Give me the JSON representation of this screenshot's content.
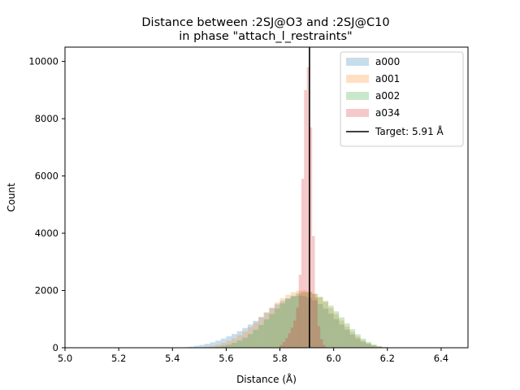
{
  "chart_data": {
    "type": "bar",
    "title": "Distance between :2SJ@O3 and :2SJ@C10",
    "subtitle": "in phase \"attach_l_restraints\"",
    "xlabel": "Distance (Å)",
    "ylabel": "Count",
    "xlim": [
      5.0,
      6.5
    ],
    "ylim": [
      0,
      10500
    ],
    "xticks": [
      "5.0",
      "5.2",
      "5.4",
      "5.6",
      "5.8",
      "6.0",
      "6.2",
      "6.4"
    ],
    "yticks": [
      "0",
      "2000",
      "4000",
      "6000",
      "8000",
      "10000"
    ],
    "grid": false,
    "legend_position": "top-right",
    "target": {
      "label": "Target: 5.91 Å",
      "value": 5.91,
      "color": "#000000"
    },
    "series": [
      {
        "name": "a000",
        "color": "#1f77b4",
        "alpha": 0.25,
        "bins": [
          [
            5.44,
            5.46,
            20
          ],
          [
            5.46,
            5.48,
            40
          ],
          [
            5.48,
            5.5,
            70
          ],
          [
            5.5,
            5.52,
            100
          ],
          [
            5.52,
            5.54,
            140
          ],
          [
            5.54,
            5.56,
            190
          ],
          [
            5.56,
            5.58,
            250
          ],
          [
            5.58,
            5.6,
            320
          ],
          [
            5.6,
            5.62,
            400
          ],
          [
            5.62,
            5.64,
            480
          ],
          [
            5.64,
            5.66,
            580
          ],
          [
            5.66,
            5.68,
            690
          ],
          [
            5.68,
            5.7,
            810
          ],
          [
            5.7,
            5.72,
            940
          ],
          [
            5.72,
            5.74,
            1080
          ],
          [
            5.74,
            5.76,
            1230
          ],
          [
            5.76,
            5.78,
            1380
          ],
          [
            5.78,
            5.8,
            1520
          ],
          [
            5.8,
            5.82,
            1640
          ],
          [
            5.82,
            5.84,
            1730
          ],
          [
            5.84,
            5.86,
            1790
          ],
          [
            5.86,
            5.88,
            1820
          ],
          [
            5.88,
            5.9,
            1800
          ],
          [
            5.9,
            5.92,
            1750
          ],
          [
            5.92,
            5.94,
            1660
          ],
          [
            5.94,
            5.96,
            1530
          ],
          [
            5.96,
            5.98,
            1370
          ],
          [
            5.98,
            6.0,
            1190
          ],
          [
            6.0,
            6.02,
            1000
          ],
          [
            6.02,
            6.04,
            810
          ],
          [
            6.04,
            6.06,
            630
          ],
          [
            6.06,
            6.08,
            460
          ],
          [
            6.08,
            6.1,
            320
          ],
          [
            6.1,
            6.12,
            210
          ],
          [
            6.12,
            6.14,
            130
          ],
          [
            6.14,
            6.16,
            70
          ],
          [
            6.16,
            6.18,
            35
          ],
          [
            6.18,
            6.2,
            15
          ]
        ]
      },
      {
        "name": "a001",
        "color": "#ff7f0e",
        "alpha": 0.25,
        "bins": [
          [
            5.5,
            5.52,
            20
          ],
          [
            5.52,
            5.54,
            40
          ],
          [
            5.54,
            5.56,
            70
          ],
          [
            5.56,
            5.58,
            110
          ],
          [
            5.58,
            5.6,
            170
          ],
          [
            5.6,
            5.62,
            240
          ],
          [
            5.62,
            5.64,
            330
          ],
          [
            5.64,
            5.66,
            440
          ],
          [
            5.66,
            5.68,
            570
          ],
          [
            5.68,
            5.7,
            720
          ],
          [
            5.7,
            5.72,
            880
          ],
          [
            5.72,
            5.74,
            1050
          ],
          [
            5.74,
            5.76,
            1230
          ],
          [
            5.76,
            5.78,
            1410
          ],
          [
            5.78,
            5.8,
            1580
          ],
          [
            5.8,
            5.82,
            1730
          ],
          [
            5.82,
            5.84,
            1850
          ],
          [
            5.84,
            5.86,
            1940
          ],
          [
            5.86,
            5.88,
            1990
          ],
          [
            5.88,
            5.9,
            2000
          ],
          [
            5.9,
            5.92,
            1970
          ],
          [
            5.92,
            5.94,
            1890
          ],
          [
            5.94,
            5.96,
            1760
          ],
          [
            5.96,
            5.98,
            1590
          ],
          [
            5.98,
            6.0,
            1390
          ],
          [
            6.0,
            6.02,
            1170
          ],
          [
            6.02,
            6.04,
            950
          ],
          [
            6.04,
            6.06,
            740
          ],
          [
            6.06,
            6.08,
            550
          ],
          [
            6.08,
            6.1,
            390
          ],
          [
            6.1,
            6.12,
            260
          ],
          [
            6.12,
            6.14,
            160
          ],
          [
            6.14,
            6.16,
            90
          ],
          [
            6.16,
            6.18,
            45
          ],
          [
            6.18,
            6.2,
            20
          ]
        ]
      },
      {
        "name": "a002",
        "color": "#2ca02c",
        "alpha": 0.25,
        "bins": [
          [
            5.54,
            5.56,
            20
          ],
          [
            5.56,
            5.58,
            40
          ],
          [
            5.58,
            5.6,
            70
          ],
          [
            5.6,
            5.62,
            110
          ],
          [
            5.62,
            5.64,
            170
          ],
          [
            5.64,
            5.66,
            250
          ],
          [
            5.66,
            5.68,
            350
          ],
          [
            5.68,
            5.7,
            480
          ],
          [
            5.7,
            5.72,
            630
          ],
          [
            5.72,
            5.74,
            800
          ],
          [
            5.74,
            5.76,
            990
          ],
          [
            5.76,
            5.78,
            1180
          ],
          [
            5.78,
            5.8,
            1370
          ],
          [
            5.8,
            5.82,
            1550
          ],
          [
            5.82,
            5.84,
            1700
          ],
          [
            5.84,
            5.86,
            1820
          ],
          [
            5.86,
            5.88,
            1900
          ],
          [
            5.88,
            5.9,
            1940
          ],
          [
            5.9,
            5.92,
            1930
          ],
          [
            5.92,
            5.94,
            1880
          ],
          [
            5.94,
            5.96,
            1780
          ],
          [
            5.96,
            5.98,
            1640
          ],
          [
            5.98,
            6.0,
            1470
          ],
          [
            6.0,
            6.02,
            1270
          ],
          [
            6.02,
            6.04,
            1060
          ],
          [
            6.04,
            6.06,
            850
          ],
          [
            6.06,
            6.08,
            650
          ],
          [
            6.08,
            6.1,
            470
          ],
          [
            6.1,
            6.12,
            320
          ],
          [
            6.12,
            6.14,
            200
          ],
          [
            6.14,
            6.16,
            115
          ],
          [
            6.16,
            6.18,
            60
          ],
          [
            6.18,
            6.2,
            25
          ]
        ]
      },
      {
        "name": "a034",
        "color": "#d62728",
        "alpha": 0.25,
        "bins": [
          [
            5.8,
            5.81,
            100
          ],
          [
            5.81,
            5.82,
            200
          ],
          [
            5.82,
            5.83,
            330
          ],
          [
            5.83,
            5.84,
            500
          ],
          [
            5.84,
            5.85,
            700
          ],
          [
            5.85,
            5.86,
            950
          ],
          [
            5.86,
            5.87,
            1400
          ],
          [
            5.87,
            5.88,
            2550
          ],
          [
            5.88,
            5.89,
            5900
          ],
          [
            5.89,
            5.9,
            9000
          ],
          [
            5.9,
            5.91,
            9800
          ],
          [
            5.91,
            5.92,
            7700
          ],
          [
            5.92,
            5.93,
            3900
          ],
          [
            5.93,
            5.94,
            1750
          ],
          [
            5.94,
            5.95,
            750
          ],
          [
            5.95,
            5.96,
            300
          ],
          [
            5.96,
            5.97,
            100
          ]
        ]
      }
    ]
  }
}
